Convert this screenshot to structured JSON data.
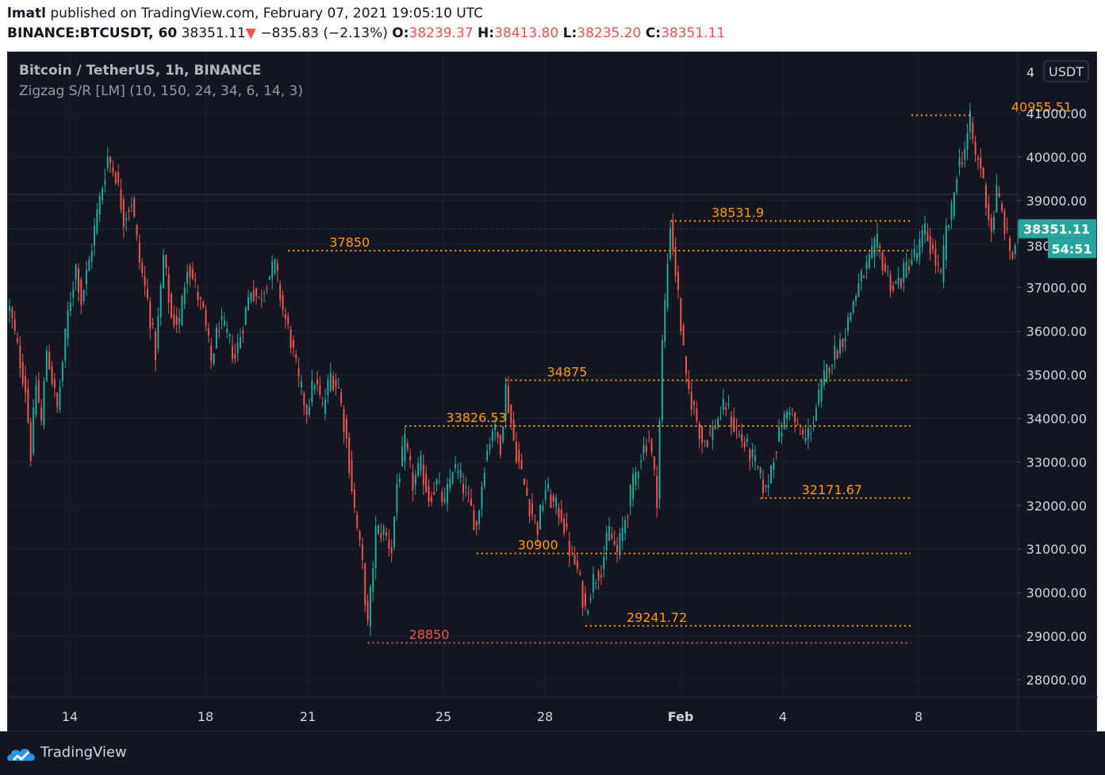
{
  "header": {
    "author": "lmatl",
    "published_text": "published on TradingView.com, February 07, 2021 19:05:10 UTC",
    "symbol": "BINANCE:BTCUSDT, 60",
    "last": "38351.11",
    "change_arrow": "▼",
    "change": "−835.83 (−2.13%)",
    "open_label": "O:",
    "open": "38239.37",
    "high_label": "H:",
    "high": "38413.80",
    "low_label": "L:",
    "low": "38235.20",
    "close_label": "C:",
    "close": "38351.11"
  },
  "legend": {
    "title": "Bitcoin / TetherUS, 1h, BINANCE",
    "indicator": "Zigzag S/R [LM] (10, 150, 24, 34, 6, 14, 3)"
  },
  "price_axis": {
    "currency": "USDT",
    "top_partial": "4",
    "current_price": "38351.11",
    "countdown": "54:51",
    "partial_hidden": "380",
    "ticks": [
      "41000.00",
      "40000.00",
      "39000.00",
      "37000.00",
      "36000.00",
      "35000.00",
      "34000.00",
      "33000.00",
      "32000.00",
      "31000.00",
      "30000.00",
      "29000.00",
      "28000.00"
    ]
  },
  "time_axis": {
    "ticks": [
      "14",
      "18",
      "21",
      "25",
      "28",
      "Feb",
      "4",
      "8"
    ]
  },
  "footer": {
    "brand": "TradingView"
  },
  "colors": {
    "background": "#131722",
    "up": "#26a69a",
    "down": "#ef5350",
    "support_resistance": "#ff9800",
    "bottom_level": "#ef5350",
    "axis_text": "#d1d4dc"
  },
  "chart_data": {
    "type": "candlestick",
    "title": "Bitcoin / TetherUS, 1h, BINANCE",
    "ylim": [
      27600,
      42400
    ],
    "y_scale": "linear",
    "grid": true,
    "x_ticks": [
      "14",
      "18",
      "21",
      "25",
      "28",
      "Feb",
      "4",
      "8"
    ],
    "path": [
      [
        0,
        36500
      ],
      [
        3,
        35600
      ],
      [
        6,
        34700
      ],
      [
        8,
        33200
      ],
      [
        10,
        34800
      ],
      [
        12,
        33900
      ],
      [
        14,
        35600
      ],
      [
        18,
        34200
      ],
      [
        22,
        36400
      ],
      [
        25,
        37500
      ],
      [
        27,
        36700
      ],
      [
        30,
        37600
      ],
      [
        33,
        38700
      ],
      [
        37,
        40000
      ],
      [
        40,
        39600
      ],
      [
        43,
        38600
      ],
      [
        46,
        39000
      ],
      [
        49,
        37600
      ],
      [
        52,
        36700
      ],
      [
        55,
        35500
      ],
      [
        58,
        37700
      ],
      [
        61,
        36300
      ],
      [
        64,
        36200
      ],
      [
        67,
        37600
      ],
      [
        70,
        37000
      ],
      [
        73,
        36400
      ],
      [
        76,
        35300
      ],
      [
        79,
        36200
      ],
      [
        82,
        35900
      ],
      [
        85,
        35400
      ],
      [
        88,
        36200
      ],
      [
        91,
        37000
      ],
      [
        94,
        36700
      ],
      [
        97,
        37200
      ],
      [
        100,
        37500
      ],
      [
        103,
        36500
      ],
      [
        106,
        35800
      ],
      [
        109,
        34800
      ],
      [
        112,
        34200
      ],
      [
        115,
        34900
      ],
      [
        118,
        34200
      ],
      [
        121,
        35000
      ],
      [
        124,
        34700
      ],
      [
        127,
        33500
      ],
      [
        130,
        31900
      ],
      [
        133,
        30600
      ],
      [
        135,
        29200
      ],
      [
        138,
        31400
      ],
      [
        141,
        31400
      ],
      [
        144,
        31000
      ],
      [
        146,
        32500
      ],
      [
        149,
        33400
      ],
      [
        152,
        32500
      ],
      [
        155,
        32900
      ],
      [
        158,
        32200
      ],
      [
        161,
        32500
      ],
      [
        164,
        32000
      ],
      [
        167,
        32900
      ],
      [
        170,
        32600
      ],
      [
        173,
        32100
      ],
      [
        176,
        31500
      ],
      [
        179,
        33000
      ],
      [
        182,
        33800
      ],
      [
        185,
        33400
      ],
      [
        187,
        34700
      ],
      [
        190,
        33500
      ],
      [
        193,
        32700
      ],
      [
        196,
        32000
      ],
      [
        199,
        31500
      ],
      [
        202,
        32400
      ],
      [
        205,
        32000
      ],
      [
        208,
        31800
      ],
      [
        211,
        31000
      ],
      [
        214,
        30500
      ],
      [
        217,
        29600
      ],
      [
        220,
        30300
      ],
      [
        223,
        30600
      ],
      [
        226,
        31400
      ],
      [
        229,
        30900
      ],
      [
        232,
        31700
      ],
      [
        235,
        32500
      ],
      [
        238,
        33200
      ],
      [
        241,
        33600
      ],
      [
        244,
        32200
      ],
      [
        246,
        35700
      ],
      [
        249,
        38500
      ],
      [
        252,
        36800
      ],
      [
        255,
        34800
      ],
      [
        258,
        34200
      ],
      [
        261,
        33500
      ],
      [
        264,
        33600
      ],
      [
        267,
        34000
      ],
      [
        270,
        34300
      ],
      [
        273,
        33800
      ],
      [
        276,
        33500
      ],
      [
        279,
        33200
      ],
      [
        282,
        32800
      ],
      [
        285,
        32300
      ],
      [
        288,
        33200
      ],
      [
        291,
        33800
      ],
      [
        294,
        34300
      ],
      [
        297,
        33700
      ],
      [
        300,
        33500
      ],
      [
        303,
        34000
      ],
      [
        306,
        34700
      ],
      [
        309,
        35300
      ],
      [
        312,
        35600
      ],
      [
        315,
        36000
      ],
      [
        318,
        36700
      ],
      [
        321,
        37200
      ],
      [
        324,
        37600
      ],
      [
        327,
        38000
      ],
      [
        330,
        37400
      ],
      [
        333,
        37000
      ],
      [
        336,
        37200
      ],
      [
        339,
        37600
      ],
      [
        342,
        37800
      ],
      [
        345,
        38300
      ],
      [
        348,
        37800
      ],
      [
        351,
        37200
      ],
      [
        353,
        38300
      ],
      [
        355,
        38700
      ],
      [
        357,
        39700
      ],
      [
        360,
        40200
      ],
      [
        362,
        40800
      ],
      [
        364,
        40000
      ],
      [
        366,
        39800
      ],
      [
        368,
        39000
      ],
      [
        370,
        38300
      ],
      [
        372,
        39200
      ],
      [
        374,
        38700
      ],
      [
        376,
        38100
      ],
      [
        378,
        37700
      ],
      [
        380,
        38350
      ]
    ],
    "levels": [
      {
        "label": "40955.51",
        "price": 40955.51,
        "from_bar": 362
      },
      {
        "label": "38531.9",
        "price": 38531.9,
        "from_bar": 249
      },
      {
        "label": "37850",
        "price": 37850,
        "from_bar": 105
      },
      {
        "label": "34875",
        "price": 34875,
        "from_bar": 187
      },
      {
        "label": "33826.53",
        "price": 33826.53,
        "from_bar": 149
      },
      {
        "label": "32171.67",
        "price": 32171.67,
        "from_bar": 283
      },
      {
        "label": "30900",
        "price": 30900,
        "from_bar": 176
      },
      {
        "label": "29241.72",
        "price": 29241.72,
        "from_bar": 217
      },
      {
        "label": "28850",
        "price": 28850,
        "from_bar": 135,
        "is_bottom": true
      }
    ]
  }
}
